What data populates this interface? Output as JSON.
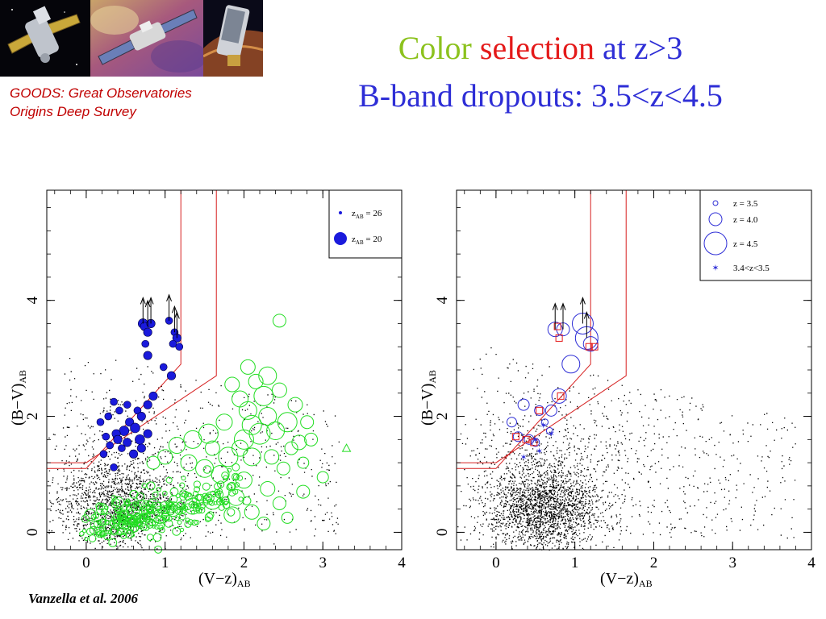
{
  "header": {
    "banner_images": [
      "chandra-satellite",
      "hubble-telescope",
      "spitzer-telescope"
    ],
    "caption_line1": "GOODS: Great Observatories",
    "caption_line2": "Origins Deep Survey",
    "title_word_color": "Color",
    "title_word_selection": "selection",
    "title_word_rest": " at z>3",
    "subtitle": "B-band dropouts: 3.5<z<4.5",
    "reference": "Vanzella et al. 2006"
  },
  "colors": {
    "green": "#8cc21e",
    "red": "#e41a1a",
    "blue": "#2e2ed6",
    "caption_red": "#c00000",
    "cut_line": "#d62020",
    "dropout_fill": "#1a1adc",
    "model_green": "#22dd22"
  },
  "chart_data": [
    {
      "type": "scatter",
      "panel": "left",
      "title": "",
      "xlabel": "(V−z)",
      "xlabel_sub": "AB",
      "ylabel": "(B−V)",
      "ylabel_sub": "AB",
      "xlim": [
        -0.5,
        4
      ],
      "ylim": [
        -0.3,
        5.9
      ],
      "xticks": [
        0,
        1,
        2,
        3,
        4
      ],
      "yticks": [
        0,
        2,
        4
      ],
      "y_label_ticks_secondary": [
        "2"
      ],
      "selection_cut": [
        {
          "name": "inner",
          "points": [
            [
              -0.5,
              1.1
            ],
            [
              0,
              1.1
            ],
            [
              1.2,
              2.9
            ],
            [
              1.2,
              5.9
            ]
          ]
        },
        {
          "name": "outer",
          "points": [
            [
              -0.5,
              1.2
            ],
            [
              0,
              1.2
            ],
            [
              1.65,
              2.7
            ],
            [
              1.65,
              5.9
            ]
          ]
        }
      ],
      "legend": {
        "position": "top-right",
        "entries": [
          {
            "label": "z",
            "label_sub": "AB",
            "label_tail": " = 26",
            "size": 2
          },
          {
            "label": "z",
            "label_sub": "AB",
            "label_tail": " = 20",
            "size": 8
          }
        ]
      },
      "series": [
        {
          "marker": "filled-circle",
          "points": [
            [
              0.72,
              3.6
            ],
            [
              0.74,
              3.55
            ],
            [
              0.78,
              3.45
            ],
            [
              0.82,
              3.6
            ],
            [
              0.75,
              3.25
            ],
            [
              1.05,
              3.65
            ],
            [
              1.12,
              3.45
            ],
            [
              1.15,
              3.35
            ],
            [
              1.1,
              3.25
            ],
            [
              1.18,
              3.2
            ],
            [
              0.78,
              3.05
            ],
            [
              0.98,
              2.85
            ],
            [
              1.08,
              2.7
            ],
            [
              0.85,
              2.35
            ],
            [
              0.78,
              2.2
            ],
            [
              0.65,
              2.1
            ],
            [
              0.52,
              2.2
            ],
            [
              0.35,
              2.25
            ],
            [
              0.42,
              2.1
            ],
            [
              0.28,
              2.0
            ],
            [
              0.7,
              2.0
            ],
            [
              0.55,
              1.9
            ],
            [
              0.62,
              1.8
            ],
            [
              0.48,
              1.75
            ],
            [
              0.38,
              1.7
            ],
            [
              0.4,
              1.6
            ],
            [
              0.52,
              1.55
            ],
            [
              0.68,
              1.6
            ],
            [
              0.25,
              1.65
            ],
            [
              0.18,
              1.9
            ],
            [
              0.7,
              1.45
            ],
            [
              0.6,
              1.35
            ],
            [
              0.45,
              1.45
            ],
            [
              0.3,
              1.5
            ],
            [
              0.22,
              1.35
            ],
            [
              0.78,
              1.7
            ],
            [
              0.35,
              1.12
            ]
          ],
          "sizes": [
            8,
            7,
            7,
            7,
            6,
            6,
            6,
            7,
            6,
            6,
            7,
            6,
            7,
            7,
            7,
            6,
            6,
            6,
            6,
            6,
            7,
            7,
            8,
            8,
            7,
            7,
            7,
            8,
            6,
            6,
            7,
            7,
            6,
            6,
            6,
            7,
            6
          ]
        },
        {
          "marker": "open-circle",
          "points": [
            [
              2.45,
              3.65
            ],
            [
              2.3,
              2.7
            ],
            [
              2.15,
              2.6
            ],
            [
              2.25,
              2.35
            ],
            [
              1.95,
              2.3
            ],
            [
              2.05,
              2.1
            ],
            [
              2.65,
              2.2
            ],
            [
              2.8,
              1.9
            ],
            [
              2.55,
              1.9
            ],
            [
              2.4,
              1.75
            ],
            [
              2.7,
              1.55
            ],
            [
              2.85,
              1.6
            ],
            [
              2.2,
              1.7
            ],
            [
              2.0,
              1.6
            ],
            [
              1.75,
              1.9
            ],
            [
              1.55,
              1.7
            ],
            [
              1.35,
              1.6
            ],
            [
              1.15,
              1.5
            ],
            [
              1.8,
              1.3
            ],
            [
              2.1,
              1.3
            ],
            [
              2.35,
              1.3
            ],
            [
              2.5,
              1.1
            ],
            [
              2.75,
              1.2
            ],
            [
              3.0,
              0.95
            ],
            [
              2.75,
              0.7
            ],
            [
              2.3,
              0.75
            ],
            [
              2.0,
              0.9
            ],
            [
              1.7,
              1.0
            ],
            [
              1.5,
              1.1
            ],
            [
              1.3,
              1.2
            ],
            [
              1.0,
              1.3
            ],
            [
              0.85,
              1.2
            ],
            [
              1.9,
              0.6
            ],
            [
              1.6,
              0.55
            ],
            [
              1.35,
              0.45
            ],
            [
              1.1,
              0.4
            ],
            [
              0.85,
              0.45
            ],
            [
              0.6,
              0.4
            ],
            [
              0.4,
              0.5
            ],
            [
              0.2,
              0.4
            ],
            [
              0.05,
              0.3
            ],
            [
              2.45,
              0.5
            ],
            [
              2.1,
              0.35
            ],
            [
              1.85,
              0.3
            ],
            [
              2.25,
              0.15
            ],
            [
              2.55,
              0.25
            ],
            [
              2.05,
              2.85
            ],
            [
              1.85,
              2.55
            ],
            [
              2.3,
              2.0
            ],
            [
              2.1,
              1.85
            ],
            [
              1.95,
              1.45
            ],
            [
              1.6,
              1.45
            ],
            [
              2.6,
              1.45
            ],
            [
              2.45,
              2.45
            ],
            [
              3.3,
              1.45
            ]
          ],
          "sizes": [
            8,
            11,
            9,
            12,
            10,
            11,
            9,
            8,
            12,
            11,
            9,
            8,
            13,
            12,
            10,
            12,
            11,
            10,
            12,
            11,
            9,
            8,
            7,
            7,
            8,
            9,
            10,
            11,
            11,
            10,
            9,
            8,
            10,
            11,
            10,
            9,
            9,
            8,
            8,
            7,
            7,
            8,
            9,
            10,
            8,
            7,
            9,
            9,
            11,
            12,
            10,
            9,
            8,
            9,
            5
          ]
        },
        {
          "marker": "dots",
          "description_count": 2200,
          "distribution": "dense clump around (V−z)=0.5, (B−V)=0.4; sparse field out to (V−z)=3"
        }
      ]
    },
    {
      "type": "scatter",
      "panel": "right",
      "title": "",
      "xlabel": "(V−z)",
      "xlabel_sub": "AB",
      "ylabel": "(B−V)",
      "ylabel_sub": "AB",
      "xlim": [
        -0.5,
        4
      ],
      "ylim": [
        -0.3,
        5.9
      ],
      "xticks": [
        0,
        1,
        2,
        3,
        4
      ],
      "yticks": [
        0,
        2,
        4
      ],
      "selection_cut": [
        {
          "name": "inner",
          "points": [
            [
              -0.5,
              1.1
            ],
            [
              0,
              1.1
            ],
            [
              1.2,
              2.9
            ],
            [
              1.2,
              5.9
            ]
          ]
        },
        {
          "name": "outer",
          "points": [
            [
              -0.5,
              1.2
            ],
            [
              0,
              1.2
            ],
            [
              1.65,
              2.7
            ],
            [
              1.65,
              5.9
            ]
          ]
        }
      ],
      "legend": {
        "position": "top-right",
        "entries": [
          {
            "label": "z = 3.5",
            "marker": "open-circle",
            "size": 3
          },
          {
            "label": "z = 4.0",
            "marker": "open-circle",
            "size": 8
          },
          {
            "label": "z = 4.5",
            "marker": "open-circle",
            "size": 14
          },
          {
            "label": "3.4<z<3.5",
            "marker": "star"
          }
        ]
      },
      "series": [
        {
          "marker": "open-circle",
          "name": "redshift circles",
          "points": [
            [
              0.75,
              3.5
            ],
            [
              0.85,
              3.5
            ],
            [
              1.1,
              3.6
            ],
            [
              1.15,
              3.35
            ],
            [
              1.2,
              3.25
            ],
            [
              0.95,
              2.9
            ],
            [
              0.8,
              2.35
            ],
            [
              0.7,
              2.1
            ],
            [
              0.55,
              2.1
            ],
            [
              0.35,
              2.2
            ],
            [
              0.2,
              1.9
            ],
            [
              0.28,
              1.65
            ],
            [
              0.42,
              1.6
            ],
            [
              0.5,
              1.55
            ],
            [
              0.62,
              1.9
            ],
            [
              0.68,
              1.75
            ]
          ],
          "sizes": [
            9,
            8,
            13,
            14,
            9,
            11,
            9,
            7,
            6,
            7,
            6,
            6,
            6,
            5,
            4,
            4
          ]
        },
        {
          "marker": "open-square",
          "points": [
            [
              0.78,
              3.55
            ],
            [
              0.8,
              3.35
            ],
            [
              1.18,
              3.2
            ],
            [
              1.25,
              3.2
            ],
            [
              0.82,
              2.35
            ],
            [
              0.55,
              2.1
            ],
            [
              0.25,
              1.65
            ],
            [
              0.38,
              1.6
            ],
            [
              0.48,
              1.55
            ]
          ]
        },
        {
          "marker": "star",
          "name": "3.4<z<3.5",
          "points": [
            [
              0.6,
              1.85
            ],
            [
              0.5,
              1.6
            ],
            [
              0.35,
              1.3
            ],
            [
              0.7,
              1.7
            ],
            [
              0.55,
              1.4
            ]
          ]
        },
        {
          "marker": "dots",
          "description_count": 3000,
          "distribution": "dense clump around (V−z)=0.6, (B−V)=0.3; sparse field out to (V−z)=3.8"
        }
      ]
    }
  ]
}
